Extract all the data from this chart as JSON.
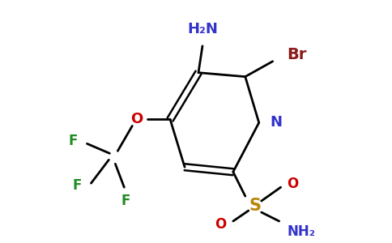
{
  "bg_color": "#ffffff",
  "bond_color": "#000000",
  "figsize": [
    4.84,
    3.0
  ],
  "dpi": 100,
  "colors": {
    "N": "#3333cc",
    "Br": "#8b1a1a",
    "O": "#cc0000",
    "F": "#228b22",
    "S": "#b8860b",
    "NH2": "#3333cc",
    "bond": "#000000"
  }
}
